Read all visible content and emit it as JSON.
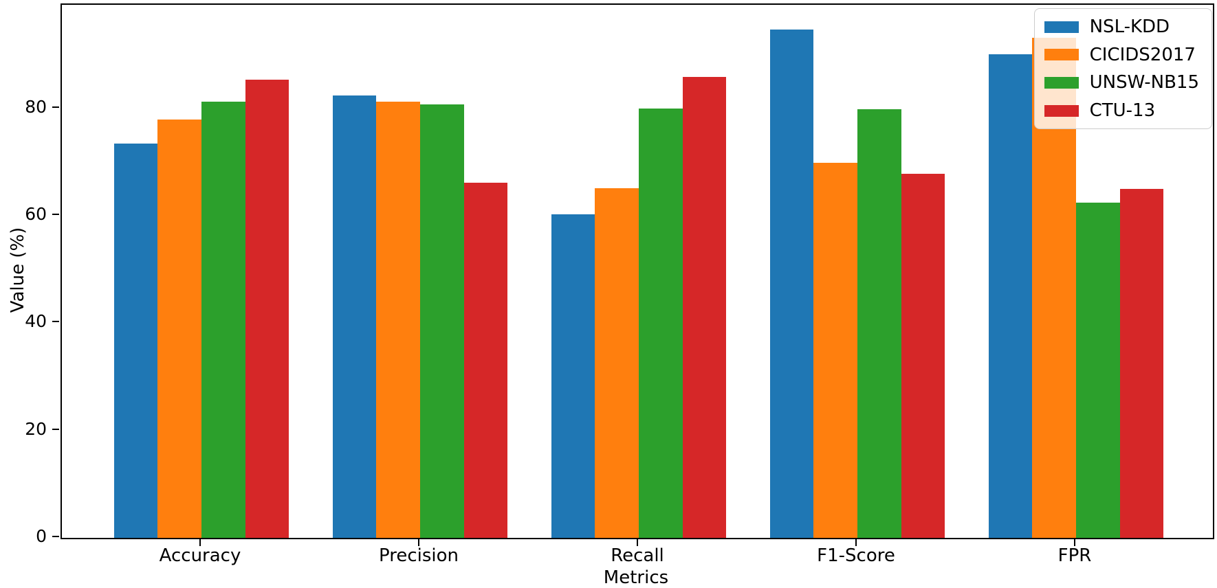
{
  "chart_data": {
    "type": "bar",
    "title": "",
    "xlabel": "Metrics",
    "ylabel": "Value (%)",
    "categories": [
      "Accuracy",
      "Precision",
      "Recall",
      "F1-Score",
      "FPR"
    ],
    "series": [
      {
        "name": "NSL-KDD",
        "color": "#1f77b4",
        "values": [
          73.5,
          82.4,
          60.3,
          94.7,
          90.1
        ]
      },
      {
        "name": "CICIDS2017",
        "color": "#ff7f0e",
        "values": [
          77.9,
          81.2,
          65.1,
          69.9,
          93.2
        ]
      },
      {
        "name": "UNSW-NB15",
        "color": "#2ca02c",
        "values": [
          81.2,
          80.7,
          80.0,
          79.8,
          62.5
        ]
      },
      {
        "name": "CTU-13",
        "color": "#d62728",
        "values": [
          85.3,
          66.1,
          85.9,
          67.8,
          65.0
        ]
      }
    ],
    "yticks": [
      0,
      20,
      40,
      60,
      80
    ],
    "ylim": [
      0,
      99.3
    ],
    "grid": false,
    "legend_position": "upper right",
    "bar_group_width_fraction": 0.8,
    "axis_color": "#000000",
    "background_color": "#ffffff"
  }
}
